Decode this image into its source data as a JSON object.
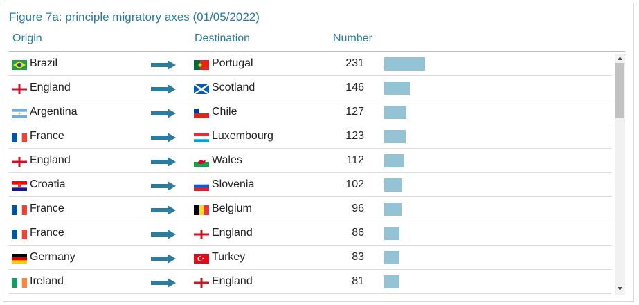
{
  "title": "Figure 7a: principle migratory axes (01/05/2022)",
  "columns": [
    "Origin",
    "Destination",
    "Number"
  ],
  "rows": [
    {
      "origin": "Brazil",
      "destination": "Portugal",
      "number": 231
    },
    {
      "origin": "England",
      "destination": "Scotland",
      "number": 146
    },
    {
      "origin": "Argentina",
      "destination": "Chile",
      "number": 127
    },
    {
      "origin": "France",
      "destination": "Luxembourg",
      "number": 123
    },
    {
      "origin": "England",
      "destination": "Wales",
      "number": 112
    },
    {
      "origin": "Croatia",
      "destination": "Slovenia",
      "number": 102
    },
    {
      "origin": "France",
      "destination": "Belgium",
      "number": 96
    },
    {
      "origin": "France",
      "destination": "England",
      "number": 86
    },
    {
      "origin": "Germany",
      "destination": "Turkey",
      "number": 83
    },
    {
      "origin": "Ireland",
      "destination": "England",
      "number": 81
    }
  ]
}
